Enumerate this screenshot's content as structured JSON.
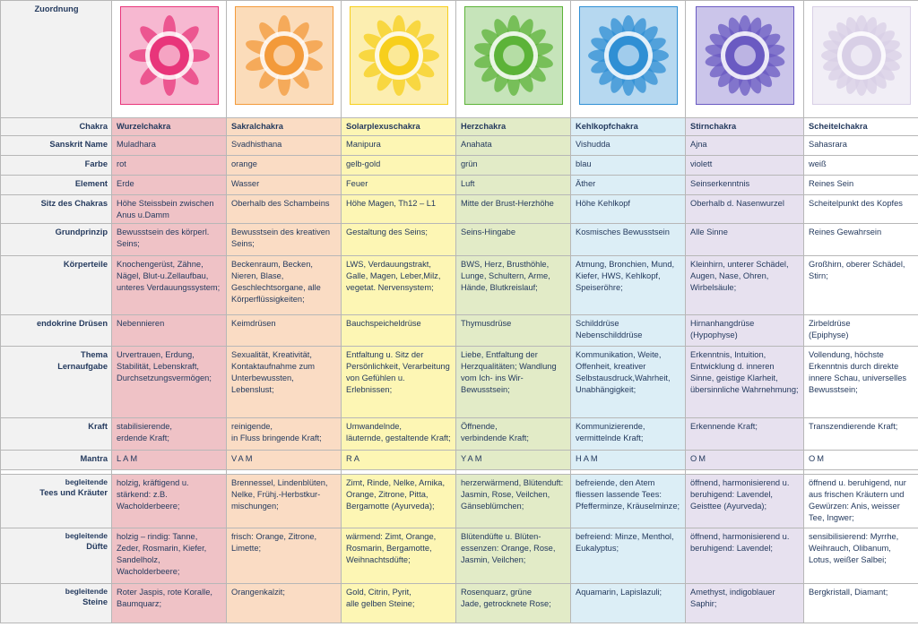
{
  "table": {
    "title": "Zuordnung",
    "row_labels": {
      "chakra": "Chakra",
      "sanskrit": "Sanskrit Name",
      "farbe": "Farbe",
      "element": "Element",
      "sitz": "Sitz des Chakras",
      "grundprinzip": "Grundprinzip",
      "koerperteile": "Körperteile",
      "druesen": "endokrine Drüsen",
      "thema": "Thema\nLernaufgabe",
      "kraft": "Kraft",
      "mantra": "Mantra",
      "tees_small": "begleitende",
      "tees": "Tees und Kräuter",
      "duefte_small": "begleitende",
      "duefte": "Düfte",
      "steine_small": "begleitende",
      "steine": "Steine"
    },
    "columns": [
      {
        "color": "#e8357a",
        "chakra": "Wurzelchakra",
        "sanskrit": "Muladhara",
        "farbe": "rot",
        "element": "Erde",
        "sitz": "Höhe Steissbein zwischen Anus u.Damm",
        "grundprinzip": "Bewusstsein des körperl. Seins;",
        "koerperteile": "Knochengerüst, Zähne, Nägel, Blut-u.Zellaufbau, unteres Verdauungssystem;",
        "druesen": "Nebennieren",
        "thema": "Urvertrauen, Erdung, Stabilität, Lebenskraft, Durchsetzungsvermögen;",
        "kraft": "stabilisierende,\nerdende Kraft;",
        "mantra": "LAM",
        "tees": "holzig, kräftigend u. stärkend: z.B. Wacholderbeere;",
        "duefte": "holzig – rindig: Tanne, Zeder, Rosmarin, Kiefer, Sandelholz, Wacholderbeere;",
        "steine": "Roter Jaspis, rote Koralle, Baumquarz;"
      },
      {
        "color": "#f39a3a",
        "chakra": "Sakralchakra",
        "sanskrit": "Svadhisthana",
        "farbe": "orange",
        "element": "Wasser",
        "sitz": "Oberhalb des Schambeins",
        "grundprinzip": "Bewusstsein des kreativen Seins;",
        "koerperteile": "Beckenraum, Becken, Nieren, Blase, Geschlechtsorgane, alle Körperflüssigkeiten;",
        "druesen": "Keimdrüsen",
        "thema": "Sexualität, Kreativität, Kontaktaufnahme zum Unterbewussten, Lebenslust;",
        "kraft": "reinigende,\nin Fluss bringende Kraft;",
        "mantra": "VAM",
        "tees": "Brennessel, Lindenblüten, Nelke, Frühj.-Herbstkur-mischungen;",
        "duefte": "frisch: Orange, Zitrone, Limette;",
        "steine": "Orangenkalzit;"
      },
      {
        "color": "#f7cf1c",
        "chakra": "Solarplexuschakra",
        "sanskrit": "Manipura",
        "farbe": "gelb-gold",
        "element": "Feuer",
        "sitz": "Höhe Magen, Th12 – L1",
        "grundprinzip": "Gestaltung des Seins;",
        "koerperteile": "LWS, Verdauungstrakt, Galle, Magen, Leber,Milz, vegetat. Nervensystem;",
        "druesen": "Bauchspeicheldrüse",
        "thema": "Entfaltung u. Sitz der Persönlichkeit, Verarbeitung von Gefühlen u. Erlebnissen;",
        "kraft": "Umwandelnde,\nläuternde, gestaltende Kraft;",
        "mantra": "RA",
        "tees": "Zimt, Rinde, Nelke, Arnika, Orange, Zitrone, Pitta, Bergamotte (Ayurveda);",
        "duefte": "wärmend: Zimt, Orange, Rosmarin, Bergamotte, Weihnachtsdüfte;",
        "steine": "Gold, Citrin, Pyrit,\nalle gelben Steine;"
      },
      {
        "color": "#5cb338",
        "chakra": "Herzchakra",
        "sanskrit": "Anahata",
        "farbe": "grün",
        "element": "Luft",
        "sitz": "Mitte der Brust-Herzhöhe",
        "grundprinzip": "Seins-Hingabe",
        "koerperteile": "BWS, Herz, Brusthöhle, Lunge, Schultern, Arme, Hände, Blutkreislauf;",
        "druesen": "Thymusdrüse",
        "thema": "Liebe, Entfaltung der Herzqualitäten; Wandlung vom Ich- ins Wir-Bewusstsein;",
        "kraft": "Öffnende,\nverbindende Kraft;",
        "mantra": "YAM",
        "tees": "herzerwärmend, Blütenduft: Jasmin, Rose, Veilchen, Gänseblümchen;",
        "duefte": "Blütendüfte u. Blüten-essenzen: Orange, Rose, Jasmin, Veilchen;",
        "steine": "Rosenquarz, grüne\nJade, getrocknete Rose;"
      },
      {
        "color": "#2f8fd4",
        "chakra": "Kehlkopfchakra",
        "sanskrit": "Vishudda",
        "farbe": "blau",
        "element": "Äther",
        "sitz": "Höhe Kehlkopf",
        "grundprinzip": "Kosmisches Bewusstsein",
        "koerperteile": "Atmung, Bronchien, Mund, Kiefer, HWS, Kehlkopf, Speiseröhre;",
        "druesen": "Schilddrüse\nNebenschilddrüse",
        "thema": "Kommunikation, Weite, Offenheit, kreativer Selbstausdruck,Wahrheit, Unabhängigkeit;",
        "kraft": "Kommunizierende,\nvermittelnde Kraft;",
        "mantra": "HAM",
        "tees": "befreiende, den Atem fliessen lassende Tees: Pfefferminze, Kräuselminze;",
        "duefte": "befreiend: Minze, Menthol, Eukalyptus;",
        "steine": "Aquamarin, Lapislazuli;"
      },
      {
        "color": "#6a5ac2",
        "chakra": "Stirnchakra",
        "sanskrit": "Ajna",
        "farbe": "violett",
        "element": "Seinserkenntnis",
        "sitz": "Oberhalb d. Nasenwurzel",
        "grundprinzip": "Alle Sinne",
        "koerperteile": "Kleinhirn, unterer Schädel, Augen, Nase, Ohren, Wirbelsäule;",
        "druesen": "Hirnanhangdrüse\n(Hypophyse)",
        "thema": "Erkenntnis, Intuition, Entwicklung d. inneren Sinne, geistige Klarheit, übersinnliche Wahrnehmung;",
        "kraft": "Erkennende Kraft;",
        "mantra": "OM",
        "tees": "öffnend, harmonisierend u. beruhigend: Lavendel, Geisttee (Ayurveda);",
        "duefte": "öffnend, harmonisierend u. beruhigend: Lavendel;",
        "steine": "Amethyst, indigoblauer Saphir;"
      },
      {
        "color": "#d8cfe6",
        "chakra": "Scheitelchakra",
        "sanskrit": "Sahasrara",
        "farbe": "weiß",
        "element": "Reines Sein",
        "sitz": "Scheitelpunkt des Kopfes",
        "grundprinzip": "Reines Gewahrsein",
        "koerperteile": "Großhirn, oberer Schädel, Stirn;",
        "druesen": "Zirbeldrüse\n(Epiphyse)",
        "thema": "Vollendung, höchste Erkenntnis durch direkte innere Schau, universelles Bewusstsein;",
        "kraft": "Transzendierende Kraft;",
        "mantra": "OM",
        "tees": "öffnend u. beruhigend, nur aus frischen Kräutern und Gewürzen: Anis, weisser Tee, Ingwer;",
        "duefte": "sensibilisierend: Myrrhe, Weihrauch, Olibanum, Lotus, weißer Salbei;",
        "steine": "Bergkristall, Diamant;"
      }
    ]
  }
}
